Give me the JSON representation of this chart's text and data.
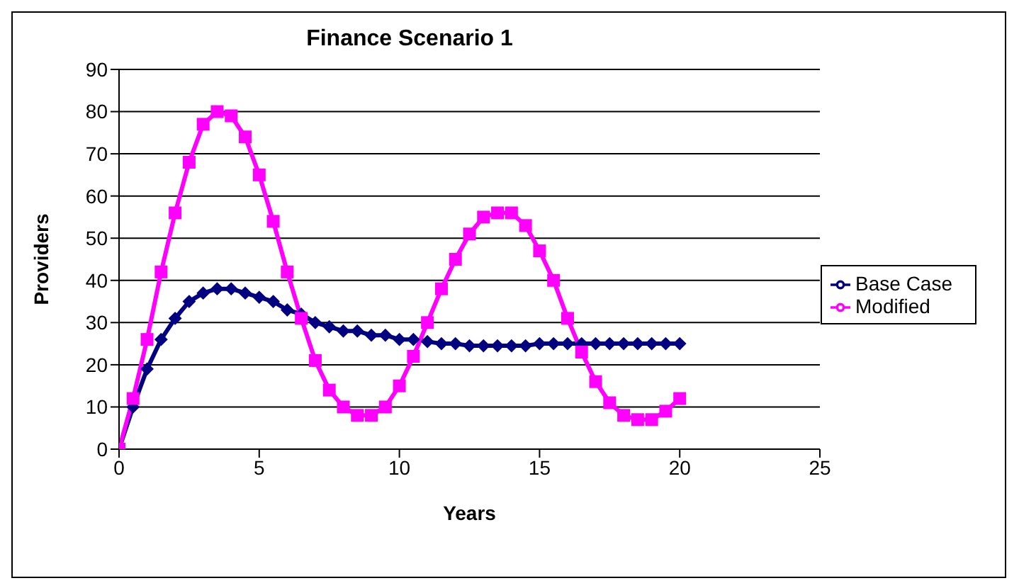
{
  "chart_data": {
    "type": "line",
    "title": "Finance Scenario 1",
    "xlabel": "Years",
    "ylabel": "Providers",
    "xlim": [
      0,
      25
    ],
    "xticks": [
      0,
      5,
      10,
      15,
      20,
      25
    ],
    "ylim": [
      0,
      90
    ],
    "yticks": [
      0,
      10,
      20,
      30,
      40,
      50,
      60,
      70,
      80,
      90
    ],
    "grid": "y",
    "legend": "right",
    "x": [
      0,
      0.5,
      1,
      1.5,
      2,
      2.5,
      3,
      3.5,
      4,
      4.5,
      5,
      5.5,
      6,
      6.5,
      7,
      7.5,
      8,
      8.5,
      9,
      9.5,
      10,
      10.5,
      11,
      11.5,
      12,
      12.5,
      13,
      13.5,
      14,
      14.5,
      15,
      15.5,
      16,
      16.5,
      17,
      17.5,
      18,
      18.5,
      19,
      19.5,
      20
    ],
    "series": [
      {
        "name": "Base Case",
        "color": "#000080",
        "marker": "diamond",
        "values": [
          0,
          10,
          19,
          26,
          31,
          35,
          37,
          38,
          38,
          37,
          36,
          35,
          33,
          32,
          30,
          29,
          28,
          28,
          27,
          27,
          26,
          26,
          25.5,
          25,
          25,
          24.5,
          24.5,
          24.5,
          24.5,
          24.5,
          25,
          25,
          25,
          25,
          25,
          25,
          25,
          25,
          25,
          25,
          25
        ]
      },
      {
        "name": "Modified",
        "color": "#ff00ff",
        "marker": "square",
        "values": [
          0,
          12,
          26,
          42,
          56,
          68,
          77,
          80,
          79,
          74,
          65,
          54,
          42,
          31,
          21,
          14,
          10,
          8,
          8,
          10,
          15,
          22,
          30,
          38,
          45,
          51,
          55,
          56,
          56,
          53,
          47,
          40,
          31,
          23,
          16,
          11,
          8,
          7,
          7,
          9,
          12
        ]
      }
    ]
  }
}
